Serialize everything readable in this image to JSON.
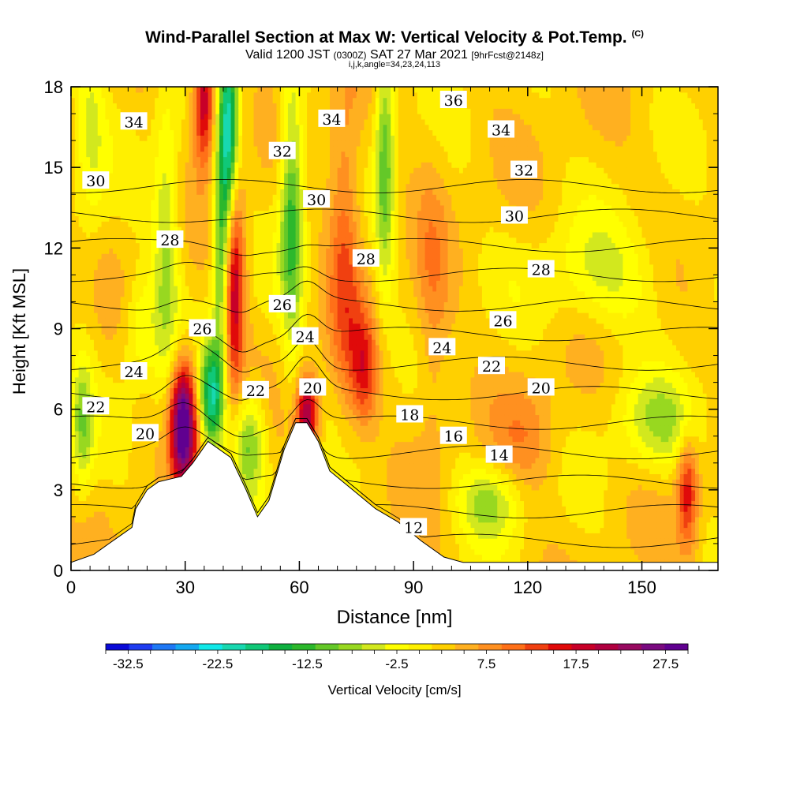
{
  "header": {
    "title": "Wind-Parallel Section at Max W: Vertical Velocity & Pot.Temp.",
    "copyright": "(C)",
    "valid_main": "Valid 1200 JST",
    "valid_utc": "(0300Z)",
    "valid_date": "SAT 27 Mar 2021",
    "forecast": "[9hrFcst@2148z]",
    "indices": "i,j,k,angle=34,23,24,113"
  },
  "colors": {
    "terrain": "#ffffff",
    "frame": "#000000",
    "contour": "#000000",
    "scale": [
      "#0a0ad8",
      "#1e3cf0",
      "#1e78f5",
      "#14a8f0",
      "#10e8e8",
      "#18d8b0",
      "#10c878",
      "#0fb040",
      "#2cb82c",
      "#64c828",
      "#98d820",
      "#d2e81e",
      "#ffff00",
      "#fff000",
      "#ffd000",
      "#ffb020",
      "#ff9020",
      "#ff7018",
      "#f04010",
      "#e00a0a",
      "#c80028",
      "#b00040",
      "#980a60",
      "#7a0a80",
      "#600090"
    ]
  },
  "chart_data": {
    "type": "heatmap",
    "xlabel": "Distance [nm]",
    "ylabel": "Height [Kft MSL]",
    "xlim": [
      0,
      170
    ],
    "ylim": [
      0,
      18
    ],
    "xticks": [
      0,
      30,
      60,
      90,
      120,
      150
    ],
    "yticks": [
      0,
      3,
      6,
      9,
      12,
      15,
      18
    ],
    "colorbar": {
      "label": "Vertical Velocity [cm/s]",
      "min": -35,
      "max": 30,
      "step": 2.5,
      "tick_labels": [
        "-32.5",
        "-22.5",
        "-12.5",
        "-2.5",
        "7.5",
        "17.5",
        "27.5"
      ]
    },
    "terrain_profile": [
      {
        "x": 0,
        "z": 0.3
      },
      {
        "x": 6,
        "z": 0.6
      },
      {
        "x": 10,
        "z": 1.0
      },
      {
        "x": 13,
        "z": 1.3
      },
      {
        "x": 16,
        "z": 1.6
      },
      {
        "x": 17,
        "z": 2.3
      },
      {
        "x": 20,
        "z": 3.0
      },
      {
        "x": 23,
        "z": 3.3
      },
      {
        "x": 26,
        "z": 3.4
      },
      {
        "x": 29,
        "z": 3.5
      },
      {
        "x": 32,
        "z": 4.0
      },
      {
        "x": 36,
        "z": 4.8
      },
      {
        "x": 42,
        "z": 4.2
      },
      {
        "x": 46,
        "z": 3.0
      },
      {
        "x": 49,
        "z": 2.0
      },
      {
        "x": 52,
        "z": 2.6
      },
      {
        "x": 56,
        "z": 4.5
      },
      {
        "x": 59,
        "z": 5.5
      },
      {
        "x": 62,
        "z": 5.5
      },
      {
        "x": 65,
        "z": 4.8
      },
      {
        "x": 68,
        "z": 3.7
      },
      {
        "x": 74,
        "z": 3.0
      },
      {
        "x": 80,
        "z": 2.3
      },
      {
        "x": 86,
        "z": 1.8
      },
      {
        "x": 92,
        "z": 1.1
      },
      {
        "x": 98,
        "z": 0.5
      },
      {
        "x": 103,
        "z": 0.3
      },
      {
        "x": 170,
        "z": 0.3
      }
    ],
    "w_cells": [
      {
        "x": 29.5,
        "z": 5.5,
        "sx": 2.4,
        "sz": 1.6,
        "w": 29
      },
      {
        "x": 42.0,
        "z": 10.8,
        "sx": 2.2,
        "sz": 2.8,
        "w": 24
      },
      {
        "x": 35.0,
        "z": 17.5,
        "sx": 2.0,
        "sz": 1.6,
        "w": 18
      },
      {
        "x": 62.0,
        "z": 5.8,
        "sx": 2.0,
        "sz": 1.0,
        "w": 20
      },
      {
        "x": 40.0,
        "z": 11.5,
        "sx": 1.8,
        "sz": 3.0,
        "w": -24
      },
      {
        "x": 41.5,
        "z": 16.5,
        "sx": 1.8,
        "sz": 2.6,
        "w": -20
      },
      {
        "x": 58.0,
        "z": 13.5,
        "sx": 2.2,
        "sz": 3.5,
        "w": -15
      },
      {
        "x": 82.5,
        "z": 15.5,
        "sx": 1.8,
        "sz": 3.5,
        "w": -13
      },
      {
        "x": 47.0,
        "z": 4.8,
        "sx": 3.0,
        "sz": 1.4,
        "w": -12
      },
      {
        "x": 37.0,
        "z": 6.5,
        "sx": 2.2,
        "sz": 1.4,
        "w": -20
      },
      {
        "x": 25.0,
        "z": 12.0,
        "sx": 2.5,
        "sz": 4.0,
        "w": -9
      },
      {
        "x": 72.0,
        "z": 12.0,
        "sx": 3.0,
        "sz": 4.0,
        "w": 9
      },
      {
        "x": 77.0,
        "z": 7.5,
        "sx": 2.5,
        "sz": 1.5,
        "w": 11
      },
      {
        "x": 162.0,
        "z": 3.0,
        "sx": 2.0,
        "sz": 1.5,
        "w": 13
      },
      {
        "x": 110.0,
        "z": 2.6,
        "sx": 6.0,
        "sz": 1.0,
        "w": -9
      },
      {
        "x": 3.0,
        "z": 5.5,
        "sx": 2.0,
        "sz": 1.8,
        "w": -10
      },
      {
        "x": 140.0,
        "z": 11.0,
        "sx": 12.0,
        "sz": 1.5,
        "w": -6
      },
      {
        "x": 155.0,
        "z": 5.5,
        "sx": 8.0,
        "sz": 1.2,
        "w": -8
      },
      {
        "x": 5.0,
        "z": 16.5,
        "sx": 3.0,
        "sz": 3.0,
        "w": -6
      },
      {
        "x": 95.0,
        "z": 9.5,
        "sx": 3.0,
        "sz": 4.0,
        "w": 5
      },
      {
        "x": 18.0,
        "z": 9.0,
        "sx": 3.0,
        "sz": 1.5,
        "w": -6
      },
      {
        "x": 120.0,
        "z": 5.0,
        "sx": 6.0,
        "sz": 1.5,
        "w": 5
      }
    ],
    "theta_contours": {
      "levels": [
        12,
        14,
        16,
        18,
        20,
        22,
        24,
        26,
        28,
        30,
        32,
        34,
        36
      ],
      "labels": [
        {
          "text": "34",
          "x": 16.5,
          "z": 16.7
        },
        {
          "text": "30",
          "x": 6.5,
          "z": 14.5
        },
        {
          "text": "28",
          "x": 26,
          "z": 12.3
        },
        {
          "text": "24",
          "x": 16.5,
          "z": 7.4
        },
        {
          "text": "22",
          "x": 6.5,
          "z": 6.1
        },
        {
          "text": "20",
          "x": 19.5,
          "z": 5.1
        },
        {
          "text": "26",
          "x": 34.5,
          "z": 9.0
        },
        {
          "text": "22",
          "x": 48.5,
          "z": 6.7
        },
        {
          "text": "26",
          "x": 55.5,
          "z": 9.9
        },
        {
          "text": "24",
          "x": 61.5,
          "z": 8.7
        },
        {
          "text": "20",
          "x": 63.5,
          "z": 6.8
        },
        {
          "text": "32",
          "x": 55.5,
          "z": 15.6
        },
        {
          "text": "30",
          "x": 64.5,
          "z": 13.8
        },
        {
          "text": "34",
          "x": 68.5,
          "z": 16.8
        },
        {
          "text": "28",
          "x": 77.5,
          "z": 11.6
        },
        {
          "text": "18",
          "x": 89.0,
          "z": 5.8
        },
        {
          "text": "12",
          "x": 90.0,
          "z": 1.6
        },
        {
          "text": "24",
          "x": 97.5,
          "z": 8.3
        },
        {
          "text": "16",
          "x": 100.5,
          "z": 5.0
        },
        {
          "text": "36",
          "x": 100.5,
          "z": 17.5
        },
        {
          "text": "22",
          "x": 110.5,
          "z": 7.6
        },
        {
          "text": "14",
          "x": 112.5,
          "z": 4.3
        },
        {
          "text": "34",
          "x": 113.0,
          "z": 16.4
        },
        {
          "text": "26",
          "x": 113.5,
          "z": 9.3
        },
        {
          "text": "32",
          "x": 119.0,
          "z": 14.9
        },
        {
          "text": "30",
          "x": 116.5,
          "z": 13.2
        },
        {
          "text": "28",
          "x": 123.5,
          "z": 11.2
        },
        {
          "text": "20",
          "x": 123.5,
          "z": 6.8
        }
      ]
    }
  }
}
